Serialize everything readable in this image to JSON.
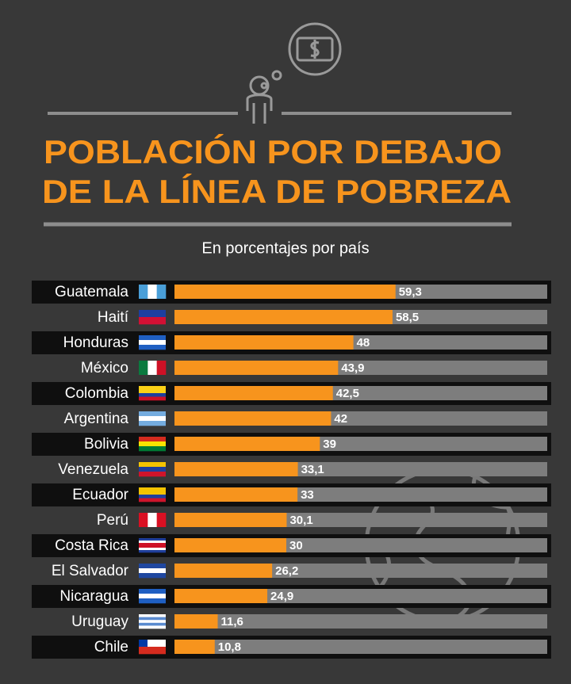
{
  "chart_data": {
    "type": "bar",
    "orientation": "horizontal",
    "title": [
      "POBLACIÓN POR DEBAJO",
      "DE LA LÍNEA DE POBREZA"
    ],
    "subtitle": "En porcentajes por país",
    "categories": [
      "Guatemala",
      "Haití",
      "Honduras",
      "México",
      "Colombia",
      "Argentina",
      "Bolivia",
      "Venezuela",
      "Ecuador",
      "Perú",
      "Costa Rica",
      "El Salvador",
      "Nicaragua",
      "Uruguay",
      "Chile"
    ],
    "values": [
      59.3,
      58.5,
      48,
      43.9,
      42.5,
      42,
      39,
      33.1,
      33,
      30.1,
      30,
      26.2,
      24.9,
      11.6,
      10.8
    ],
    "value_labels": [
      "59,3",
      "58,5",
      "48",
      "43,9",
      "42,5",
      "42",
      "39",
      "33,1",
      "33",
      "30,1",
      "30",
      "26,2",
      "24,9",
      "11,6",
      "10,8"
    ],
    "color": "#f7941d",
    "track_color": "#7d7d7d",
    "xlim": [
      0,
      100
    ]
  }
}
